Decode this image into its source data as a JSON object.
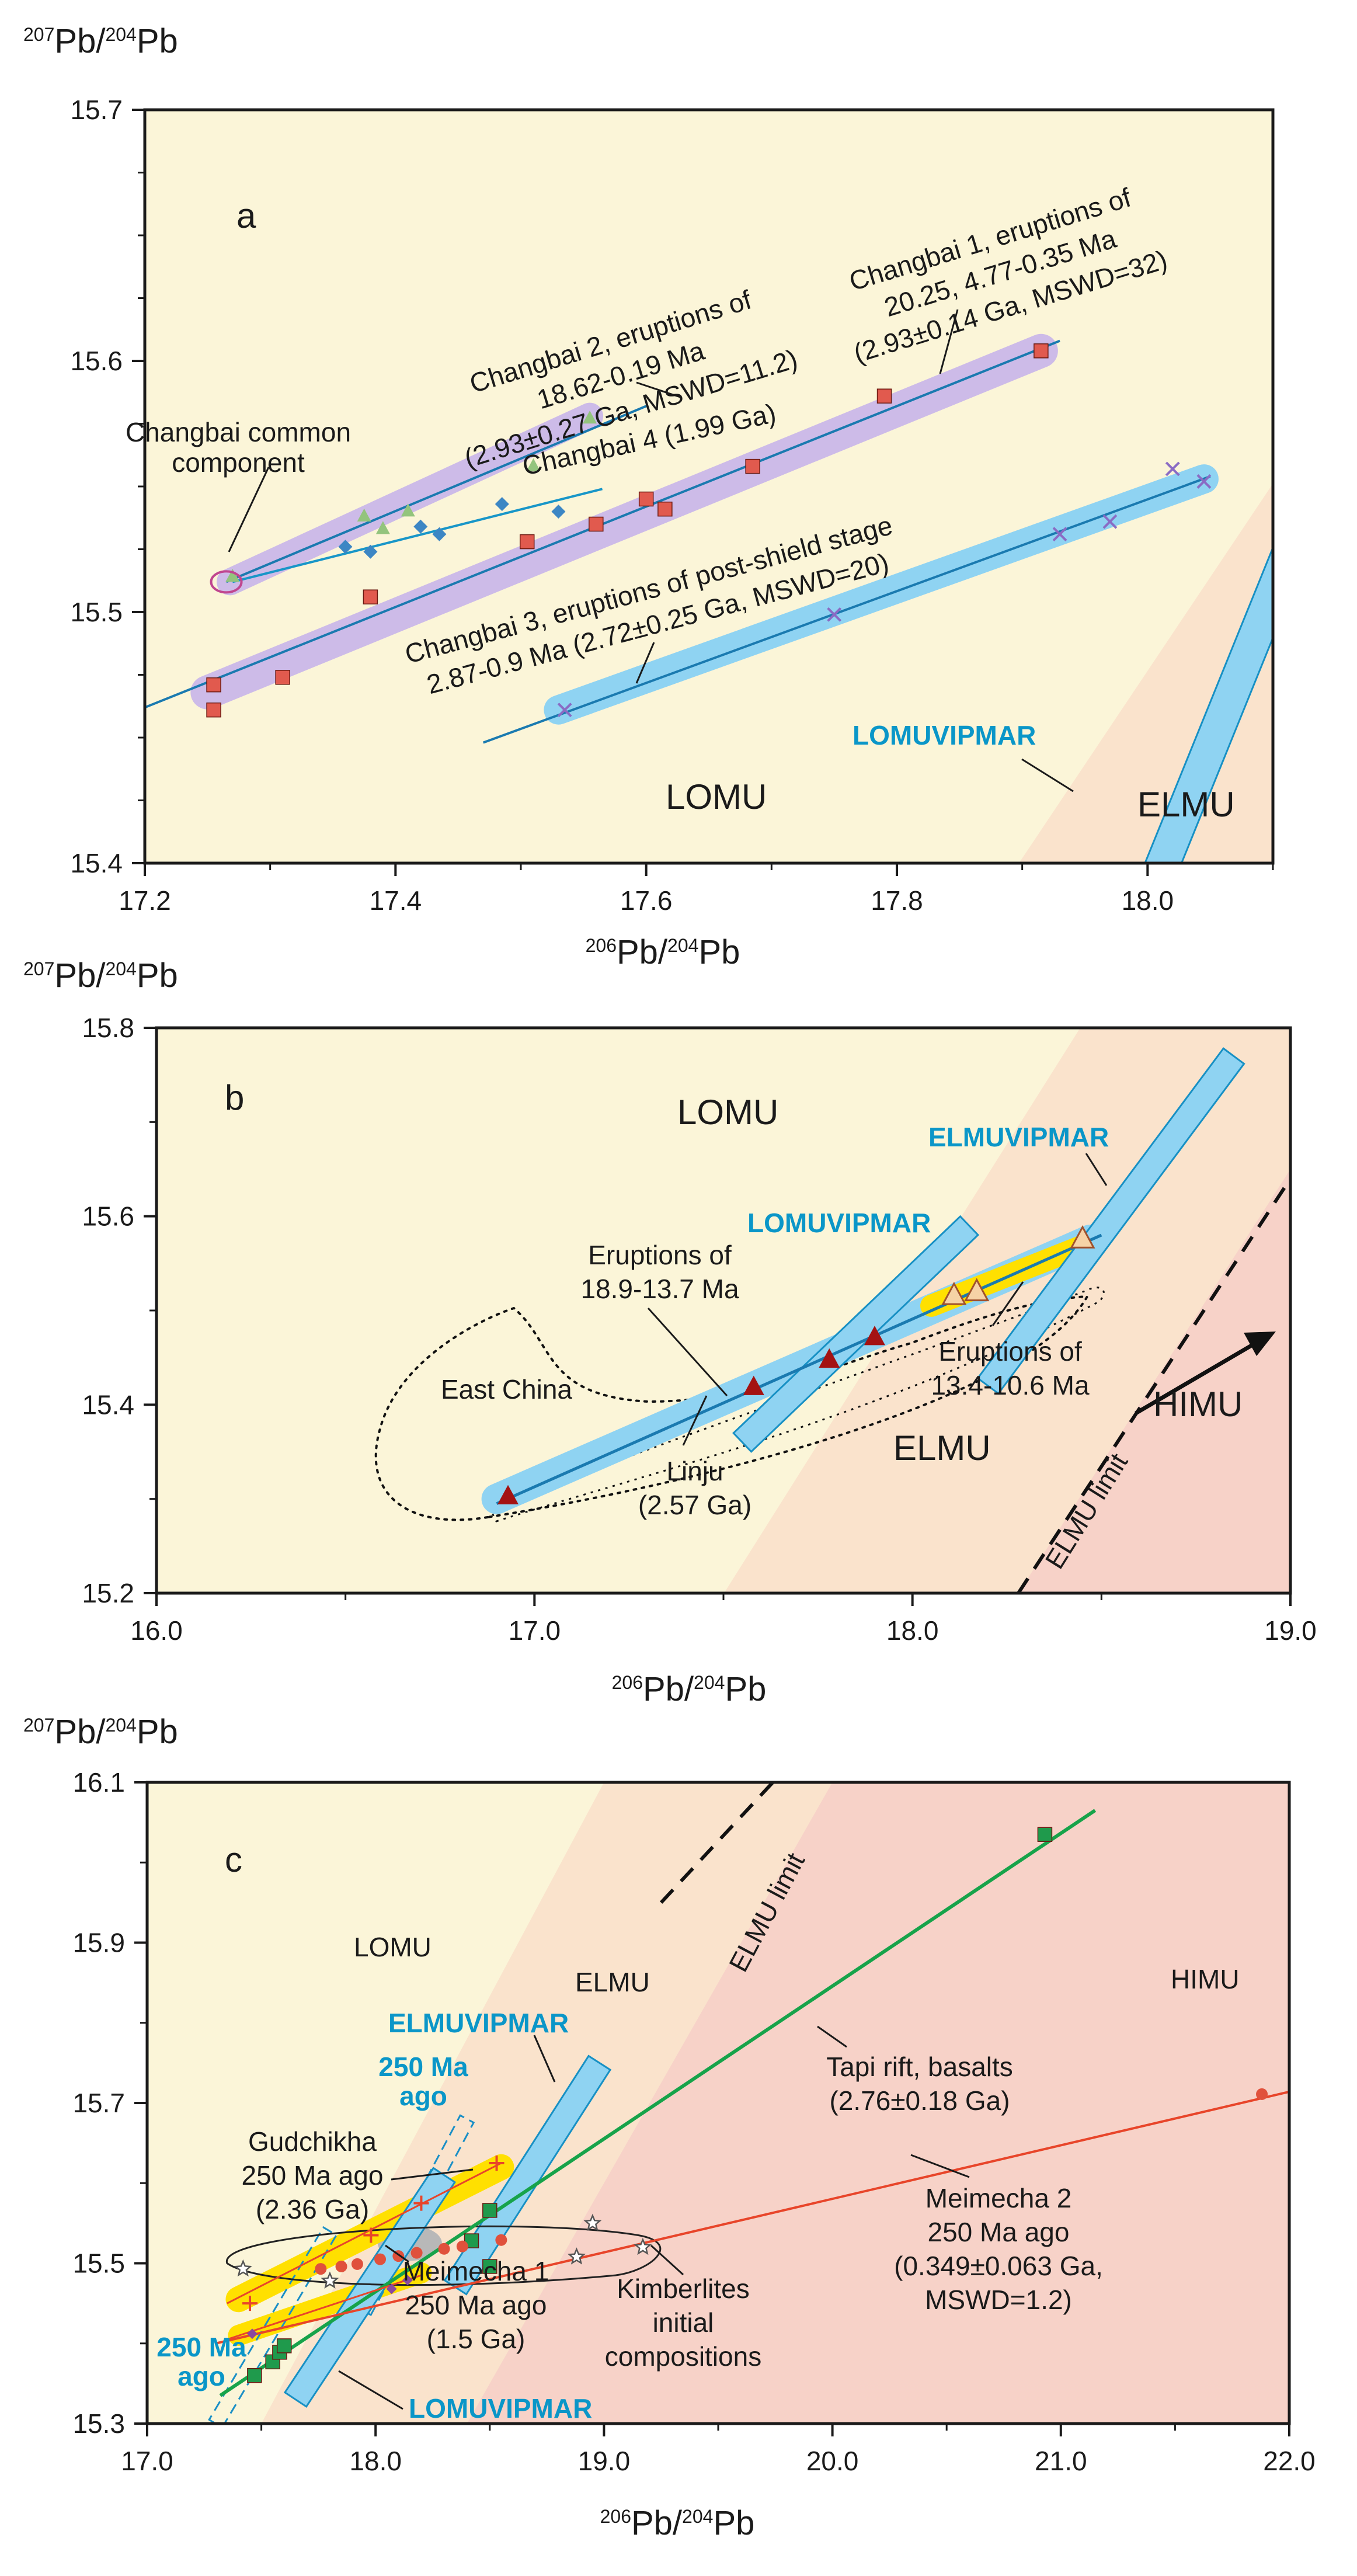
{
  "colors": {
    "bg_lomu": "#fbf5d8",
    "bg_elmu": "#fae3cc",
    "bg_himu": "#f7d2c8",
    "band_blue": "#8fd3f2",
    "band_blue_edge": "#1790c4",
    "band_purple": "#cdbbe8",
    "trend_blue": "#1a7ab0",
    "trend_green": "#17a34a",
    "trend_red": "#e8452a",
    "band_yellow": "#ffe000",
    "square_red": "#e15a4e",
    "triangle_dark": "#a41212",
    "triangle_light": "#f6d3a6",
    "diamond_blue": "#3c86c4",
    "triangle_green": "#93c47d",
    "cross_purple": "#8a6bc4",
    "square_green": "#1f9a4c",
    "circle_red": "#e0513c",
    "magenta": "#c0468f"
  },
  "chart_data": [
    {
      "type": "scatter",
      "panel": "a",
      "xlabel": "206Pb/204Pb",
      "ylabel": "207Pb/204Pb",
      "xlim": [
        17.2,
        18.1
      ],
      "ylim": [
        15.4,
        15.7
      ],
      "xticks": [
        "17.2",
        "17.4",
        "17.6",
        "17.8",
        "18.0"
      ],
      "yticks": [
        "15.4",
        "15.5",
        "15.6",
        "15.7"
      ],
      "regions": [
        "LOMU",
        "ELMU"
      ],
      "band_label": "LOMUVIPMAR",
      "common_component_label": [
        "Changbai common",
        "component"
      ],
      "series": [
        {
          "name": "Changbai 1",
          "marker": "square",
          "x": [
            17.255,
            17.255,
            17.31,
            17.38,
            17.505,
            17.56,
            17.6,
            17.615,
            17.685,
            17.79,
            17.915
          ],
          "y": [
            15.461,
            15.471,
            15.474,
            15.506,
            15.528,
            15.535,
            15.545,
            15.541,
            15.558,
            15.586,
            15.604
          ],
          "trend": {
            "x": [
              17.2,
              17.93
            ],
            "y": [
              15.462,
              15.608
            ]
          },
          "label": [
            "Changbai 1, eruptions of",
            "20.25, 4.77-0.35 Ma",
            "(2.93±0.14 Ga, MSWD=32)"
          ]
        },
        {
          "name": "Changbai 2",
          "marker": "triangle",
          "x": [
            17.27,
            17.375,
            17.39,
            17.41,
            17.51,
            17.555
          ],
          "y": [
            15.514,
            15.538,
            15.533,
            15.54,
            15.558,
            15.577
          ],
          "trend": {
            "x": [
              17.265,
              17.6
            ],
            "y": [
              15.512,
              15.582
            ]
          },
          "label": [
            "Changbai 2, eruptions of",
            "18.62-0.19 Ma",
            "(2.93±0.27 Ga, MSWD=11.2)"
          ]
        },
        {
          "name": "Changbai 4",
          "marker": "diamond",
          "x": [
            17.36,
            17.38,
            17.42,
            17.435,
            17.485,
            17.53
          ],
          "y": [
            15.526,
            15.524,
            15.534,
            15.531,
            15.543,
            15.54
          ],
          "trend": {
            "x": [
              17.27,
              17.565
            ],
            "y": [
              15.512,
              15.549
            ]
          },
          "label": [
            "Changbai 4 (1.99 Ga)"
          ]
        },
        {
          "name": "Changbai 3",
          "marker": "cross",
          "x": [
            17.535,
            17.75,
            17.93,
            17.97,
            18.02,
            18.045
          ],
          "y": [
            15.461,
            15.499,
            15.531,
            15.536,
            15.557,
            15.552
          ],
          "trend": {
            "x": [
              17.47,
              18.05
            ],
            "y": [
              15.448,
              15.554
            ]
          },
          "label": [
            "Changbai 3, eruptions of post-shield stage",
            "2.87-0.9 Ma (2.72±0.25 Ga, MSWD=20)"
          ]
        }
      ]
    },
    {
      "type": "scatter",
      "panel": "b",
      "xlabel": "206Pb/204Pb",
      "ylabel": "207Pb/204Pb",
      "xlim": [
        16.0,
        19.0
      ],
      "ylim": [
        15.2,
        15.8
      ],
      "xticks": [
        "16.0",
        "17.0",
        "18.0",
        "19.0"
      ],
      "yticks": [
        "15.2",
        "15.4",
        "15.6",
        "15.8"
      ],
      "regions": [
        "LOMU",
        "ELMU",
        "HIMU"
      ],
      "band_labels": [
        "ELMUVIPMAR",
        "LOMUVIPMAR"
      ],
      "field_label": "East China",
      "limit_label": "ELMU limit",
      "series": [
        {
          "name": "Eruptions of 18.9-13.7 Ma",
          "marker": "filled-triangle",
          "x": [
            16.93,
            17.58,
            17.78,
            17.9
          ],
          "y": [
            15.302,
            15.418,
            15.447,
            15.471
          ]
        },
        {
          "name": "Eruptions of 13.4-10.6 Ma",
          "marker": "open-triangle",
          "x": [
            18.11,
            18.17,
            18.45
          ],
          "y": [
            15.515,
            15.519,
            15.575
          ]
        }
      ],
      "labels": {
        "eruptions_old": [
          "Eruptions of",
          "18.9-13.7 Ma"
        ],
        "eruptions_young": [
          "Eruptions of",
          "13.4-10.6 Ma"
        ],
        "linju": [
          "Linju",
          "(2.57 Ga)"
        ]
      }
    },
    {
      "type": "scatter",
      "panel": "c",
      "xlabel": "206Pb/204Pb",
      "ylabel": "207Pb/204Pb",
      "xlim": [
        17.0,
        22.0
      ],
      "ylim": [
        15.3,
        16.1
      ],
      "xticks": [
        "17.0",
        "18.0",
        "19.0",
        "20.0",
        "21.0",
        "22.0"
      ],
      "yticks": [
        "15.3",
        "15.5",
        "15.7",
        "15.9",
        "16.1"
      ],
      "regions": [
        "LOMU",
        "ELMU",
        "HIMU"
      ],
      "band_labels": [
        "ELMUVIPMAR",
        "LOMUVIPMAR"
      ],
      "age_labels": [
        "250 Ma",
        "ago"
      ],
      "limit_label": "ELMU limit",
      "series": [
        {
          "name": "Tapi rift, basalts",
          "marker": "square",
          "x": [
            17.47,
            17.55,
            17.58,
            17.6,
            18.42,
            18.5,
            18.5,
            20.93
          ],
          "y": [
            15.36,
            15.377,
            15.389,
            15.397,
            15.528,
            15.566,
            15.496,
            16.035
          ],
          "trend": {
            "x": [
              17.32,
              21.15
            ],
            "y": [
              15.335,
              16.065
            ]
          },
          "label": [
            "Tapi rift, basalts",
            "(2.76±0.18 Ga)"
          ]
        },
        {
          "name": "Meimecha 2",
          "marker": "circle",
          "x": [
            17.76,
            17.85,
            17.92,
            18.02,
            18.1,
            18.18,
            18.3,
            18.38,
            18.55,
            21.88
          ],
          "y": [
            15.493,
            15.496,
            15.499,
            15.505,
            15.509,
            15.513,
            15.518,
            15.521,
            15.529,
            15.711
          ],
          "trend": {
            "x": [
              17.3,
              22.0
            ],
            "y": [
              15.4,
              15.714
            ]
          },
          "label": [
            "Meimecha 2",
            "250 Ma ago",
            "(0.349±0.063 Ga,",
            "MSWD=1.2)"
          ]
        },
        {
          "name": "Gudchikha",
          "marker": "plus",
          "x": [
            17.45,
            17.98,
            18.2,
            18.53
          ],
          "y": [
            15.45,
            15.535,
            15.575,
            15.625
          ],
          "label": [
            "Gudchikha",
            "250 Ma ago",
            "(2.36 Ga)"
          ]
        },
        {
          "name": "Meimecha 1",
          "marker": "small-diamond",
          "x": [
            17.46,
            18.07,
            18.14
          ],
          "y": [
            15.412,
            15.468,
            15.479
          ],
          "label": [
            "Meimecha 1",
            "250 Ma ago",
            "(1.5 Ga)"
          ]
        },
        {
          "name": "Kimberlites initial compositions",
          "marker": "star",
          "x": [
            17.42,
            17.8,
            18.88,
            18.95,
            19.17
          ],
          "y": [
            15.493,
            15.478,
            15.508,
            15.55,
            15.52
          ],
          "label": [
            "Kimberlites",
            "initial",
            "compositions"
          ]
        }
      ]
    }
  ]
}
